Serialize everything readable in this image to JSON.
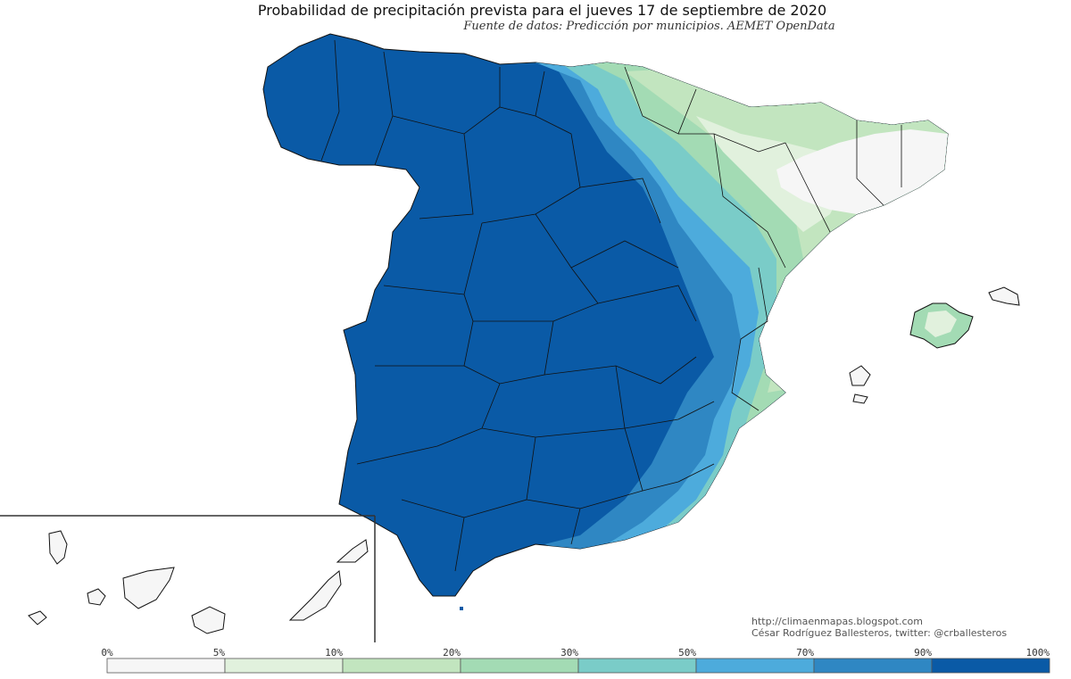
{
  "title": "Probabilidad de precipitación prevista para el jueves 17 de septiembre de 2020",
  "subtitle": "Fuente de datos: Predicción por municipios. AEMET OpenData",
  "credits": {
    "blog": "http://climaenmapas.blogspot.com",
    "author": "César Rodríguez Ballesteros, twitter: @crballesteros"
  },
  "legend": {
    "ticks": [
      "0%",
      "5%",
      "10%",
      "20%",
      "30%",
      "50%",
      "70%",
      "90%",
      "100%"
    ],
    "colors": [
      "#f6f6f6",
      "#e1f1dd",
      "#c2e5bf",
      "#a3dbb4",
      "#7accc8",
      "#4dabdc",
      "#2f87c3",
      "#0a5aa6"
    ]
  },
  "palette": {
    "land_high": "#0a5aa6",
    "land_90": "#2f87c3",
    "land_70": "#4dabdc",
    "land_50": "#7accc8",
    "land_20": "#a3dbb4",
    "land_10": "#c2e5bf",
    "land_5": "#e1f1dd",
    "land_low": "#f6f6f6",
    "border": "#111111"
  }
}
